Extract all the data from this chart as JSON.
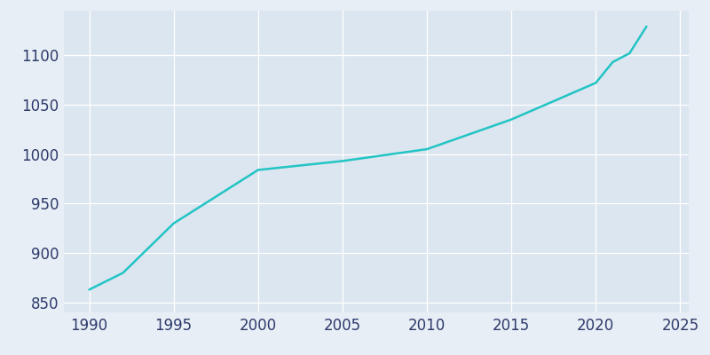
{
  "years": [
    1990,
    1992,
    1995,
    2000,
    2005,
    2010,
    2015,
    2020,
    2021,
    2022,
    2023
  ],
  "population": [
    863,
    880,
    930,
    984,
    993,
    1005,
    1035,
    1072,
    1093,
    1102,
    1129
  ],
  "line_color": "#22c4c4",
  "line_width": 1.8,
  "bg_color": "#e8eef5",
  "plot_bg_color": "#dce6f0",
  "grid_color": "#ffffff",
  "tick_color": "#2d3a6b",
  "xlim": [
    1988.5,
    2025.5
  ],
  "ylim": [
    840,
    1145
  ],
  "xticks": [
    1990,
    1995,
    2000,
    2005,
    2010,
    2015,
    2020,
    2025
  ],
  "yticks": [
    850,
    900,
    950,
    1000,
    1050,
    1100
  ],
  "tick_fontsize": 12
}
